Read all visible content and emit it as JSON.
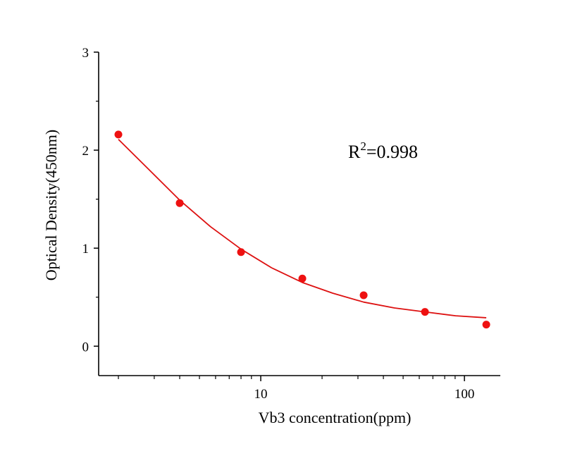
{
  "chart_data": {
    "type": "scatter",
    "title": "",
    "xlabel": "Vb3  concentration(ppm)",
    "ylabel": "Optical Density(450nm)",
    "x_scale": "log",
    "xlim": [
      1.6,
      150
    ],
    "ylim": [
      -0.3,
      3
    ],
    "x_ticks": [
      10,
      100
    ],
    "x_tick_labels": [
      "10",
      "100"
    ],
    "y_ticks": [
      0,
      1,
      2,
      3
    ],
    "y_tick_labels": [
      "0",
      "1",
      "2",
      "3"
    ],
    "grid": false,
    "legend": "none",
    "annotation": {
      "base": "R",
      "sup": "2",
      "rest": "=0.998"
    },
    "series": [
      {
        "kind": "points",
        "color": "#ee1111",
        "x": [
          2,
          4,
          8,
          16,
          32,
          64,
          128
        ],
        "y": [
          2.16,
          1.46,
          0.96,
          0.69,
          0.52,
          0.35,
          0.22
        ]
      },
      {
        "kind": "fit-curve",
        "color": "#dd1111",
        "x": [
          2,
          2.83,
          4,
          5.66,
          8,
          11.3,
          16,
          22.6,
          32,
          45.3,
          64,
          90.5,
          128
        ],
        "y": [
          2.11,
          1.8,
          1.49,
          1.22,
          0.99,
          0.8,
          0.65,
          0.54,
          0.45,
          0.39,
          0.35,
          0.31,
          0.29
        ]
      }
    ]
  }
}
